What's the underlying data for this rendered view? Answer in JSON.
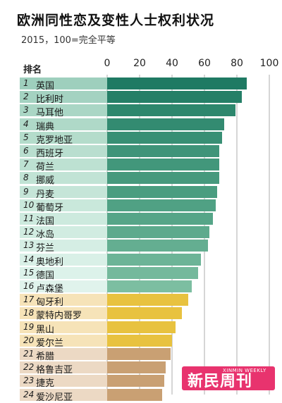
{
  "chart_data": {
    "type": "bar",
    "orientation": "horizontal",
    "title": "欧洲同性恋及变性人士权利状况",
    "subtitle": "2015，100=完全平等",
    "header": "排名",
    "xlim": [
      0,
      100
    ],
    "xticks": [
      "0",
      "20",
      "40",
      "60",
      "80",
      "100"
    ],
    "grid": true,
    "ranks": [
      "1",
      "2",
      "3",
      "4",
      "5",
      "6",
      "7",
      "8",
      "9",
      "10",
      "11",
      "12",
      "13",
      "14",
      "15",
      "16",
      "17",
      "18",
      "19",
      "20",
      "21",
      "22",
      "23",
      "24"
    ],
    "categories": [
      "英国",
      "比利时",
      "马耳他",
      "瑞典",
      "克罗地亚",
      "西班牙",
      "荷兰",
      "挪威",
      "丹麦",
      "葡萄牙",
      "法国",
      "冰岛",
      "芬兰",
      "奥地利",
      "德国",
      "卢森堡",
      "匈牙利",
      "蒙特内哥罗",
      "黑山",
      "爱尔兰",
      "希腊",
      "格鲁吉亚",
      "捷克",
      "爱沙尼亚"
    ],
    "values": [
      86,
      83,
      79,
      72,
      71,
      69,
      69,
      69,
      68,
      67,
      65,
      63,
      62,
      58,
      56,
      52,
      50,
      46,
      42,
      40,
      39,
      36,
      35,
      34
    ],
    "groups": [
      "green",
      "green",
      "green",
      "green",
      "green",
      "green",
      "green",
      "green",
      "green",
      "green",
      "green",
      "green",
      "green",
      "green",
      "green",
      "green",
      "yellow",
      "yellow",
      "yellow",
      "yellow",
      "tan",
      "tan",
      "tan",
      "tan"
    ],
    "colors": {
      "green_bars": [
        "#1f7a63",
        "#257f67",
        "#2d876d",
        "#338b71",
        "#388f74",
        "#3f9479",
        "#42977b",
        "#46997d",
        "#4a9d80",
        "#50a184",
        "#56a588",
        "#5daa8d",
        "#64ae91",
        "#6cb497",
        "#74b99c",
        "#7cbea1"
      ],
      "green_label_bg": [
        "#9ecfbd",
        "#a4d2c1",
        "#aad6c5",
        "#afd9c8",
        "#b4dccb",
        "#b9decf",
        "#bde1d2",
        "#c1e3d5",
        "#c5e5d8",
        "#c9e8db",
        "#cdeade",
        "#d1ece1",
        "#d5eee4",
        "#d9f0e7",
        "#dcf2ea",
        "#e0f3ec"
      ],
      "yellow_bar": "#e8c23f",
      "yellow_label_bg": "#f6e3b8",
      "tan_bar": "#c9a073",
      "tan_label_bg": "#ecd9c4",
      "gridline": "#9a9a9a"
    }
  },
  "logo": {
    "text": "新民周刊",
    "small_text": "XINMIN WEEKLY"
  }
}
